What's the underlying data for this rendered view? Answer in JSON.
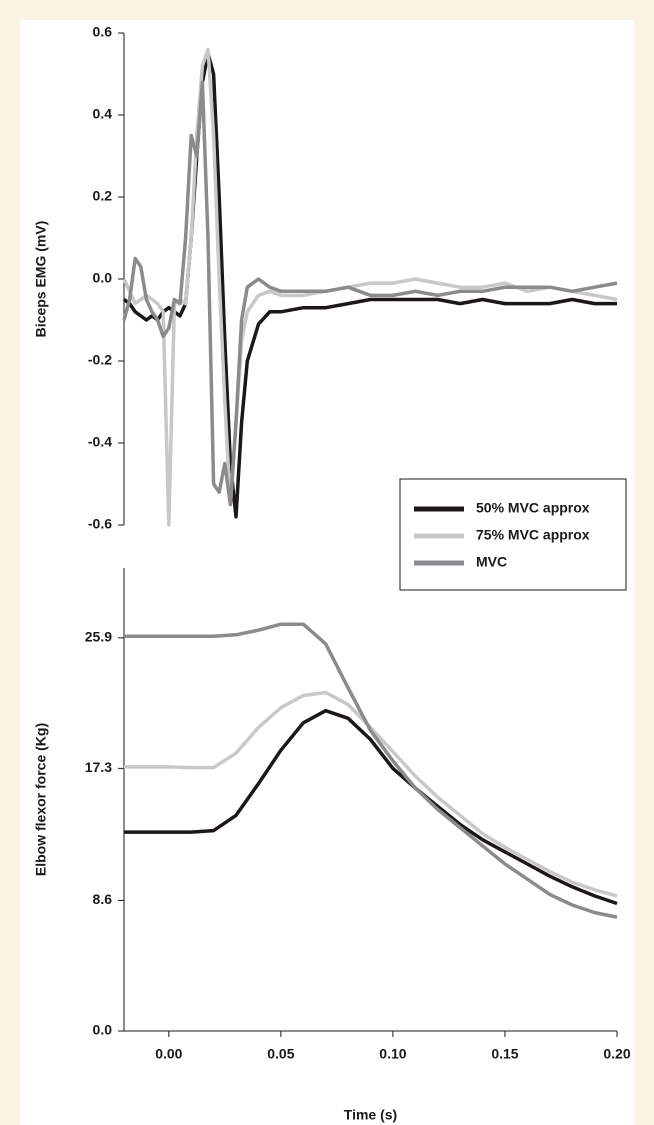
{
  "chart_data": [
    {
      "type": "line",
      "ylabel": "Biceps EMG (mV)",
      "x": [
        -0.02,
        -0.0175,
        -0.015,
        -0.0125,
        -0.01,
        -0.0075,
        -0.005,
        -0.0025,
        0,
        0.0025,
        0.005,
        0.0075,
        0.01,
        0.0125,
        0.015,
        0.0175,
        0.02,
        0.0225,
        0.025,
        0.0275,
        0.03,
        0.0325,
        0.035,
        0.04,
        0.045,
        0.05,
        0.06,
        0.07,
        0.08,
        0.09,
        0.1,
        0.11,
        0.12,
        0.13,
        0.14,
        0.15,
        0.16,
        0.17,
        0.18,
        0.19,
        0.2
      ],
      "xlim": [
        -0.02,
        0.2
      ],
      "ylim": [
        -0.6,
        0.6
      ],
      "yticks": [
        0.6,
        0.4,
        0.2,
        {
          "value": 0,
          "label": "0.0"
        },
        -0.2,
        -0.4,
        -0.6
      ],
      "legend": "lower right",
      "series": [
        {
          "name": "50% MVC approx",
          "color": "#1c1718",
          "values": [
            -0.05,
            -0.06,
            -0.08,
            -0.09,
            -0.1,
            -0.09,
            -0.1,
            -0.08,
            -0.07,
            -0.08,
            -0.09,
            -0.06,
            0.1,
            0.3,
            0.48,
            0.55,
            0.5,
            0.2,
            -0.15,
            -0.45,
            -0.58,
            -0.35,
            -0.2,
            -0.11,
            -0.08,
            -0.08,
            -0.07,
            -0.07,
            -0.06,
            -0.05,
            -0.05,
            -0.05,
            -0.05,
            -0.06,
            -0.05,
            -0.06,
            -0.06,
            -0.06,
            -0.05,
            -0.06,
            -0.06
          ]
        },
        {
          "name": "75% MVC approx",
          "color": "#c8c8c8",
          "values": [
            0.0,
            -0.03,
            -0.06,
            -0.05,
            -0.04,
            -0.05,
            -0.06,
            -0.08,
            -0.6,
            -0.06,
            -0.05,
            -0.06,
            0.1,
            0.35,
            0.52,
            0.56,
            0.35,
            0.0,
            -0.3,
            -0.55,
            -0.35,
            -0.15,
            -0.08,
            -0.04,
            -0.03,
            -0.04,
            -0.04,
            -0.03,
            -0.02,
            -0.01,
            -0.01,
            0.0,
            -0.01,
            -0.02,
            -0.02,
            -0.01,
            -0.03,
            -0.02,
            -0.03,
            -0.04,
            -0.05
          ]
        },
        {
          "name": "MVC",
          "color": "#8b8a8c",
          "values": [
            -0.1,
            -0.05,
            0.05,
            0.03,
            -0.05,
            -0.08,
            -0.1,
            -0.14,
            -0.12,
            -0.05,
            -0.06,
            0.1,
            0.35,
            0.3,
            0.48,
            0.1,
            -0.5,
            -0.52,
            -0.45,
            -0.55,
            -0.35,
            -0.1,
            -0.02,
            0.0,
            -0.02,
            -0.03,
            -0.03,
            -0.03,
            -0.02,
            -0.04,
            -0.04,
            -0.03,
            -0.04,
            -0.03,
            -0.03,
            -0.02,
            -0.02,
            -0.02,
            -0.03,
            -0.02,
            -0.01
          ]
        }
      ]
    },
    {
      "type": "line",
      "ylabel": "Elbow flexor force (Kg)",
      "xlabel": "Time (s)",
      "x": [
        -0.02,
        -0.01,
        0,
        0.01,
        0.02,
        0.03,
        0.04,
        0.05,
        0.06,
        0.07,
        0.08,
        0.09,
        0.1,
        0.11,
        0.12,
        0.13,
        0.14,
        0.15,
        0.16,
        0.17,
        0.18,
        0.19,
        0.2
      ],
      "xlim": [
        -0.02,
        0.2
      ],
      "xticks": [
        {
          "value": 0,
          "label": "0.00"
        },
        0.05,
        {
          "value": 0.1,
          "label": "0.10"
        },
        0.15,
        {
          "value": 0.2,
          "label": "0.20"
        }
      ],
      "ylim": [
        0,
        30.5
      ],
      "yticks": [
        {
          "value": 0,
          "label": "0.0"
        },
        8.6,
        17.3,
        25.9
      ],
      "series": [
        {
          "color": "#1c1718",
          "values": [
            13.1,
            13.1,
            13.1,
            13.1,
            13.2,
            14.2,
            16.3,
            18.5,
            20.3,
            21.1,
            20.6,
            19.2,
            17.3,
            16.0,
            14.8,
            13.6,
            12.6,
            11.8,
            11.0,
            10.2,
            9.5,
            8.9,
            8.4
          ]
        },
        {
          "color": "#c8c8c8",
          "values": [
            17.4,
            17.4,
            17.4,
            17.35,
            17.35,
            18.3,
            20.0,
            21.3,
            22.1,
            22.3,
            21.5,
            20.0,
            18.4,
            16.8,
            15.4,
            14.2,
            13.0,
            12.1,
            11.3,
            10.5,
            9.8,
            9.3,
            8.9
          ]
        },
        {
          "color": "#8b8a8c",
          "values": [
            26.0,
            26.0,
            26.0,
            26.0,
            26.0,
            26.1,
            26.4,
            26.8,
            26.8,
            25.5,
            22.6,
            19.8,
            17.8,
            16.0,
            14.6,
            13.4,
            12.2,
            11.0,
            10.0,
            9.0,
            8.3,
            7.8,
            7.5
          ]
        }
      ]
    }
  ]
}
